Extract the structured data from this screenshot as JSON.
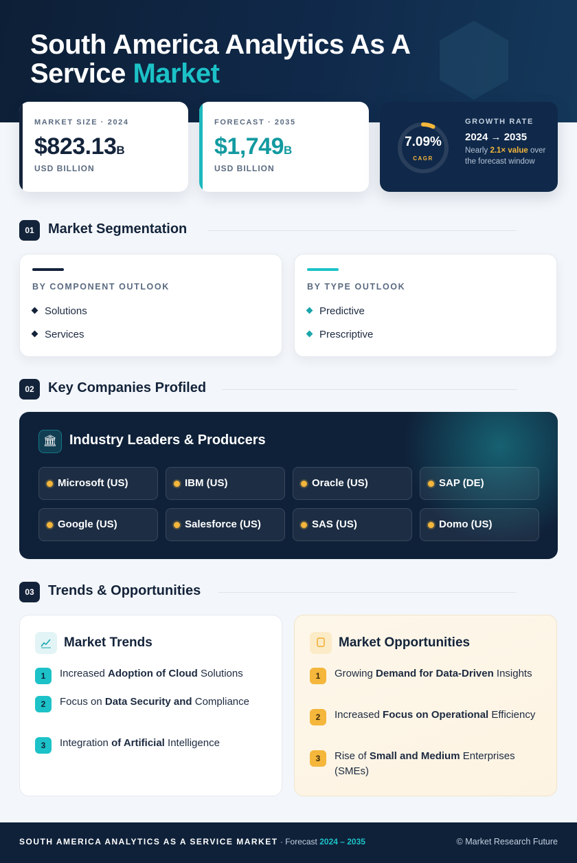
{
  "hero": {
    "title_line1": "South America Analytics As A",
    "title_line2_prefix": "Service",
    "title_line2_accent": "Market"
  },
  "stats": {
    "market_size": {
      "label": "MARKET SIZE · 2024",
      "value": "$823.13",
      "unit": "B",
      "sub": "USD BILLION"
    },
    "forecast": {
      "label": "FORECAST · 2035",
      "value": "$1,749",
      "unit": "B",
      "sub": "USD BILLION"
    },
    "growth": {
      "cagr_value": "7.09%",
      "cagr_label": "CAGR",
      "label": "GROWTH RATE",
      "years": "2024 → 2035",
      "note_prefix": "Nearly",
      "note_highlight": "2.1× value",
      "note_suffix": "over the forecast window"
    }
  },
  "sections": {
    "s1": {
      "num": "01",
      "title": "Market Segmentation"
    },
    "s2": {
      "num": "02",
      "title": "Key Companies Profiled"
    },
    "s3": {
      "num": "03",
      "title": "Trends & Opportunities"
    }
  },
  "segmentation": {
    "component": {
      "title": "BY COMPONENT OUTLOOK",
      "items": [
        "Solutions",
        "Services"
      ]
    },
    "type": {
      "title": "BY TYPE OUTLOOK",
      "items": [
        "Predictive",
        "Prescriptive"
      ]
    }
  },
  "companies": {
    "title": "Industry Leaders & Producers",
    "icon": "bank-icon",
    "list": [
      "Microsoft (US)",
      "IBM (US)",
      "Oracle (US)",
      "SAP (DE)",
      "Google (US)",
      "Salesforce (US)",
      "SAS (US)",
      "Domo (US)"
    ]
  },
  "trends": {
    "title": "Market Trends",
    "icon": "chart-line-icon",
    "items": [
      {
        "num": "1",
        "pre": "Increased ",
        "bold": "Adoption of Cloud",
        "post": " Solutions"
      },
      {
        "num": "2",
        "pre": "Focus on ",
        "bold": "Data Security and",
        "post": " Compliance"
      },
      {
        "num": "3",
        "pre": "Integration ",
        "bold": "of Artificial",
        "post": " Intelligence"
      }
    ]
  },
  "opportunities": {
    "title": "Market Opportunities",
    "icon": "lightbulb-icon",
    "items": [
      {
        "num": "1",
        "pre": "Growing ",
        "bold": "Demand for Data-Driven",
        "post": " Insights"
      },
      {
        "num": "2",
        "pre": "Increased ",
        "bold": "Focus on Operational",
        "post": " Efficiency"
      },
      {
        "num": "3",
        "pre": "Rise of ",
        "bold": "Small and Medium",
        "post": " Enterprises (SMEs)"
      }
    ]
  },
  "footer": {
    "brand": "SOUTH AMERICA ANALYTICS AS A SERVICE MARKET",
    "sep": " · Forecast ",
    "years": "2024 – 2035",
    "copyright": "© Market Research Future"
  },
  "colors": {
    "navy": "#13233a",
    "teal": "#1cc2c7",
    "amber": "#f4b63b"
  }
}
